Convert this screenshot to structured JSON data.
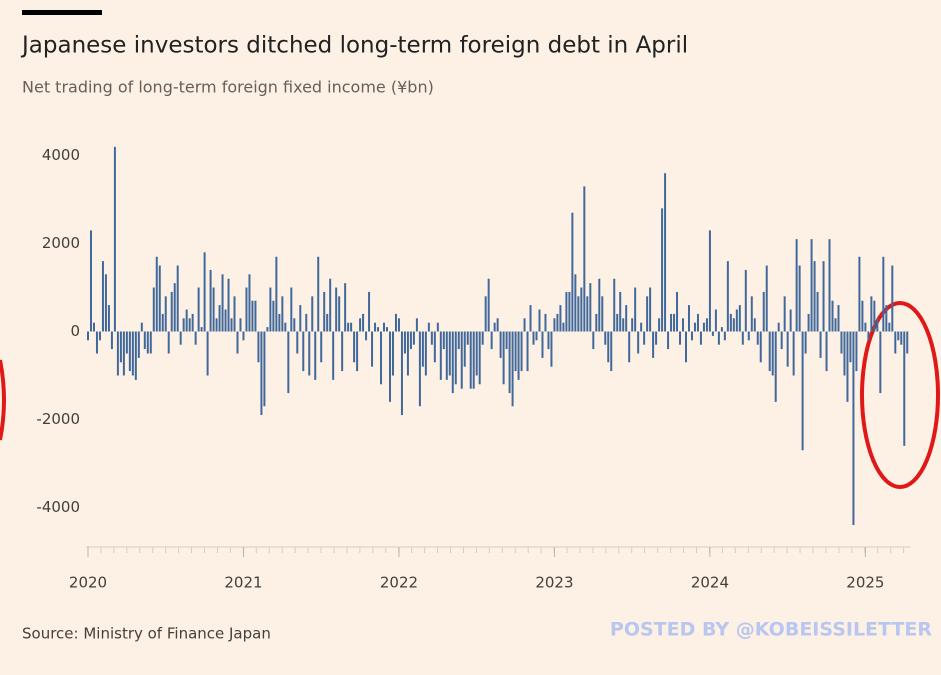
{
  "chart_data": {
    "type": "bar",
    "title": "Japanese investors ditched long-term foreign debt in April",
    "subtitle": "Net trading of long-term foreign fixed income (¥bn)",
    "source": "Source: Ministry of Finance Japan",
    "watermark": "POSTED BY @KOBEISSILETTER",
    "color": "#41689a",
    "grid": false,
    "ylim": [
      -4900,
      4400
    ],
    "yticks": [
      4000,
      2000,
      0,
      -2000,
      -4000
    ],
    "categories": [
      "2020",
      null,
      null,
      null,
      null,
      null,
      null,
      null,
      null,
      null,
      null,
      null,
      null,
      null,
      null,
      null,
      null,
      null,
      null,
      null,
      null,
      null,
      null,
      null,
      null,
      null,
      null,
      null,
      null,
      null,
      null,
      null,
      null,
      null,
      null,
      null,
      null,
      null,
      null,
      null,
      null,
      null,
      null,
      null,
      null,
      null,
      null,
      null,
      null,
      null,
      null,
      null,
      "2021",
      null,
      null,
      null,
      null,
      null,
      null,
      null,
      null,
      null,
      null,
      null,
      null,
      null,
      null,
      null,
      null,
      null,
      null,
      null,
      null,
      null,
      null,
      null,
      null,
      null,
      null,
      null,
      null,
      null,
      null,
      null,
      null,
      null,
      null,
      null,
      null,
      null,
      null,
      null,
      null,
      null,
      null,
      null,
      null,
      null,
      null,
      null,
      null,
      null,
      null,
      null,
      "2022",
      null,
      null,
      null,
      null,
      null,
      null,
      null,
      null,
      null,
      null,
      null,
      null,
      null,
      null,
      null,
      null,
      null,
      null,
      null,
      null,
      null,
      null,
      null,
      null,
      null,
      null,
      null,
      null,
      null,
      null,
      null,
      null,
      null,
      null,
      null,
      null,
      null,
      null,
      null,
      null,
      null,
      null,
      null,
      null,
      null,
      null,
      null,
      null,
      null,
      null,
      null,
      "2023",
      null,
      null,
      null,
      null,
      null,
      null,
      null,
      null,
      null,
      null,
      null,
      null,
      null,
      null,
      null,
      null,
      null,
      null,
      null,
      null,
      null,
      null,
      null,
      null,
      null,
      null,
      null,
      null,
      null,
      null,
      null,
      null,
      null,
      null,
      null,
      null,
      null,
      null,
      null,
      null,
      null,
      null,
      null,
      null,
      null,
      null,
      null,
      null,
      null,
      null,
      null,
      "2024",
      null,
      null,
      null,
      null,
      null,
      null,
      null,
      null,
      null,
      null,
      null,
      null,
      null,
      null,
      null,
      null,
      null,
      null,
      null,
      null,
      null,
      null,
      null,
      null,
      null,
      null,
      null,
      null,
      null,
      null,
      null,
      null,
      null,
      null,
      null,
      null,
      null,
      null,
      null,
      null,
      null,
      null,
      null,
      null,
      null,
      null,
      null,
      null,
      null,
      null,
      null,
      "2025",
      null,
      null,
      null,
      null,
      null,
      null,
      null,
      null,
      null,
      null,
      null,
      null,
      null,
      null
    ],
    "values": [
      -200,
      2300,
      200,
      -500,
      -200,
      1600,
      1300,
      600,
      -400,
      4200,
      -1000,
      -700,
      -1000,
      -500,
      -900,
      -1000,
      -1100,
      -600,
      200,
      -400,
      -500,
      -500,
      1000,
      1700,
      1500,
      400,
      800,
      -500,
      900,
      1100,
      1500,
      -300,
      300,
      500,
      300,
      400,
      -300,
      1000,
      100,
      1800,
      -1000,
      1400,
      1000,
      300,
      600,
      1300,
      500,
      1200,
      300,
      800,
      -500,
      300,
      -200,
      1000,
      1300,
      700,
      700,
      -700,
      -1900,
      -1700,
      100,
      1000,
      700,
      1700,
      400,
      800,
      200,
      -1400,
      1000,
      300,
      -500,
      600,
      -900,
      400,
      -1000,
      800,
      -1100,
      1700,
      -700,
      900,
      400,
      1200,
      -1100,
      1000,
      800,
      -900,
      1100,
      200,
      200,
      -700,
      -900,
      300,
      400,
      -200,
      900,
      -800,
      200,
      100,
      -1200,
      200,
      100,
      -1600,
      -1000,
      400,
      300,
      -1900,
      -500,
      -1000,
      -400,
      -300,
      300,
      -1700,
      -800,
      -1000,
      200,
      -300,
      -700,
      200,
      -1100,
      -400,
      -1100,
      -1000,
      -1400,
      -1200,
      -400,
      -1300,
      -800,
      -300,
      -1300,
      -1300,
      -1000,
      -1200,
      -300,
      800,
      1200,
      -400,
      200,
      300,
      -600,
      -1200,
      -400,
      -1400,
      -1700,
      -900,
      -1100,
      -900,
      300,
      -900,
      600,
      -300,
      -200,
      500,
      -600,
      400,
      -400,
      -800,
      300,
      400,
      600,
      200,
      900,
      900,
      2700,
      1300,
      800,
      1000,
      3300,
      800,
      1100,
      -400,
      400,
      1200,
      800,
      -300,
      -700,
      -900,
      1200,
      400,
      900,
      300,
      600,
      -700,
      300,
      1000,
      -500,
      200,
      -300,
      800,
      1000,
      -600,
      -300,
      300,
      2800,
      3600,
      -400,
      400,
      400,
      900,
      -300,
      300,
      -700,
      600,
      -200,
      200,
      400,
      -300,
      200,
      300,
      2300,
      -100,
      500,
      -300,
      100,
      -200,
      1600,
      400,
      300,
      500,
      600,
      -300,
      1400,
      -200,
      800,
      300,
      -300,
      -700,
      900,
      1500,
      -900,
      -1000,
      -1600,
      200,
      -400,
      800,
      -800,
      500,
      -1000,
      2100,
      1500,
      -2700,
      -500,
      400,
      2100,
      1600,
      900,
      -600,
      1600,
      -900,
      2100,
      700,
      300,
      600,
      -500,
      -1000,
      -1600,
      -700,
      -4400,
      -900,
      1700,
      700,
      200,
      -200,
      800,
      700,
      300,
      -1400,
      1700,
      600,
      200,
      1500,
      -500,
      -200,
      -300,
      -2600,
      -500
    ]
  }
}
